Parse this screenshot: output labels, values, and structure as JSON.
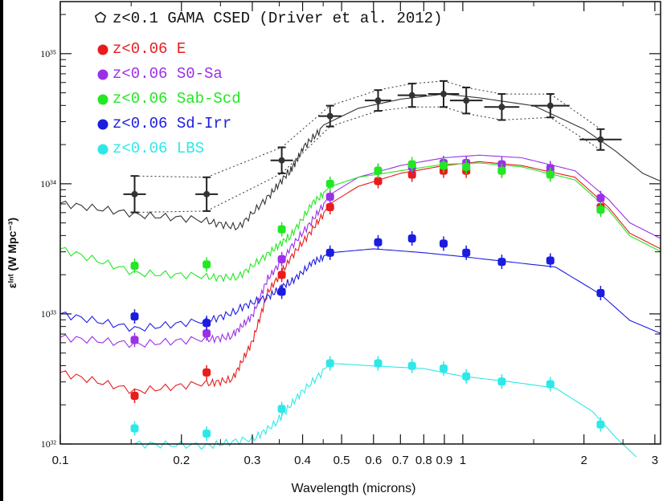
{
  "chart_data": {
    "type": "scatter",
    "title": "",
    "xlabel": "Wavelength (microns)",
    "ylabel": "εᴵⁿᵗ (W Mpc⁻³)",
    "xscale": "log",
    "yscale": "log",
    "xlim": [
      0.1,
      3.1
    ],
    "ylim_log10": [
      32,
      35.4
    ],
    "x_ticks": [
      {
        "v": 0.1,
        "label": "0.1"
      },
      {
        "v": 0.2,
        "label": "0.2"
      },
      {
        "v": 0.3,
        "label": "0.3"
      },
      {
        "v": 0.4,
        "label": "0.4"
      },
      {
        "v": 0.5,
        "label": "0.5"
      },
      {
        "v": 0.6,
        "label": "0.6"
      },
      {
        "v": 0.7,
        "label": "0.7"
      },
      {
        "v": 0.8,
        "label": "0.8"
      },
      {
        "v": 0.9,
        "label": "0.9"
      },
      {
        "v": 1,
        "label": "1"
      },
      {
        "v": 2,
        "label": "2"
      },
      {
        "v": 3,
        "label": "3"
      }
    ],
    "y_ticks": [
      {
        "v": 32,
        "label": "10³²"
      },
      {
        "v": 33,
        "label": "10³³"
      },
      {
        "v": 34,
        "label": "10³⁴"
      },
      {
        "v": 35,
        "label": "10³⁵"
      }
    ],
    "legend_position": "top-left",
    "series": [
      {
        "name": "z<0.1 GAMA CSED (Driver et al. 2012)",
        "color": "#111111",
        "marker": "open-pentagon",
        "x": [
          0.153,
          0.231,
          0.355,
          0.468,
          0.616,
          0.748,
          0.896,
          1.02,
          1.25,
          1.65,
          2.2
        ],
        "log_y": [
          33.92,
          33.92,
          34.18,
          34.52,
          34.64,
          34.68,
          34.69,
          34.64,
          34.59,
          34.6,
          34.34
        ],
        "log_err": [
          0.14,
          0.13,
          0.1,
          0.08,
          0.08,
          0.09,
          0.1,
          0.1,
          0.1,
          0.09,
          0.08
        ]
      },
      {
        "name": "z<0.06 E",
        "color": "#e81c1c",
        "marker": "filled-circle",
        "x": [
          0.153,
          0.231,
          0.355,
          0.468,
          0.616,
          0.748,
          0.896,
          1.02,
          1.25,
          1.65,
          2.2
        ],
        "log_y": [
          32.37,
          32.55,
          33.3,
          33.82,
          34.02,
          34.07,
          34.1,
          34.1,
          34.1,
          34.08,
          33.82
        ]
      },
      {
        "name": "z<0.06 S0-Sa",
        "color": "#9b30e8",
        "marker": "filled-circle",
        "x": [
          0.153,
          0.231,
          0.355,
          0.468,
          0.616,
          0.748,
          0.896,
          1.02,
          1.25,
          1.65,
          2.2
        ],
        "log_y": [
          32.8,
          32.85,
          33.42,
          33.9,
          34.1,
          34.13,
          34.16,
          34.16,
          34.15,
          34.12,
          33.89
        ]
      },
      {
        "name": "z<0.06 Sab-Scd",
        "color": "#22e822",
        "marker": "filled-circle",
        "x": [
          0.153,
          0.231,
          0.355,
          0.468,
          0.616,
          0.748,
          0.896,
          1.02,
          1.25,
          1.65,
          2.2
        ],
        "log_y": [
          33.37,
          33.38,
          33.65,
          34.0,
          34.1,
          34.15,
          34.14,
          34.13,
          34.1,
          34.07,
          33.8
        ]
      },
      {
        "name": "z<0.06 Sd-Irr",
        "color": "#1c1ce0",
        "marker": "filled-circle",
        "x": [
          0.153,
          0.231,
          0.355,
          0.468,
          0.616,
          0.748,
          0.896,
          1.02,
          1.25,
          1.65,
          2.2
        ],
        "log_y": [
          32.98,
          32.93,
          33.17,
          33.47,
          33.55,
          33.58,
          33.54,
          33.47,
          33.4,
          33.41,
          33.16
        ]
      },
      {
        "name": "z<0.06 LBS",
        "color": "#2ee8e8",
        "marker": "filled-circle",
        "x": [
          0.153,
          0.231,
          0.355,
          0.468,
          0.616,
          0.748,
          0.896,
          1.02,
          1.25,
          1.65,
          2.2
        ],
        "log_y": [
          32.12,
          32.08,
          32.27,
          32.62,
          32.62,
          32.6,
          32.58,
          32.52,
          32.48,
          32.46,
          32.15
        ]
      }
    ],
    "envelope": {
      "name": "GAMA CSED uncertainty envelope",
      "style": "dotted",
      "x": [
        0.153,
        0.231,
        0.355,
        0.468,
        0.616,
        0.748,
        0.896,
        1.02,
        1.25,
        1.65,
        2.2
      ],
      "upper_log_y": [
        34.06,
        34.05,
        34.28,
        34.6,
        34.72,
        34.77,
        34.79,
        34.74,
        34.69,
        34.69,
        34.42
      ],
      "lower_log_y": [
        33.78,
        33.79,
        34.08,
        34.44,
        34.56,
        34.59,
        34.59,
        34.54,
        34.49,
        34.51,
        34.26
      ]
    },
    "model_curves": [
      {
        "name": "GAMA",
        "color": "#333333",
        "pts": [
          [
            0.1,
            33.85
          ],
          [
            0.153,
            33.78
          ],
          [
            0.231,
            33.73
          ],
          [
            0.28,
            33.68
          ],
          [
            0.33,
            33.92
          ],
          [
            0.37,
            34.1
          ],
          [
            0.4,
            34.28
          ],
          [
            0.45,
            34.45
          ],
          [
            0.55,
            34.58
          ],
          [
            0.7,
            34.65
          ],
          [
            0.9,
            34.69
          ],
          [
            1.1,
            34.66
          ],
          [
            1.5,
            34.6
          ],
          [
            2.0,
            34.42
          ],
          [
            2.4,
            34.25
          ],
          [
            2.8,
            34.08
          ],
          [
            3.1,
            34.02
          ]
        ]
      },
      {
        "name": "E",
        "color": "#e81c1c",
        "pts": [
          [
            0.1,
            32.55
          ],
          [
            0.153,
            32.42
          ],
          [
            0.231,
            32.48
          ],
          [
            0.27,
            32.52
          ],
          [
            0.3,
            32.8
          ],
          [
            0.33,
            33.2
          ],
          [
            0.37,
            33.42
          ],
          [
            0.42,
            33.65
          ],
          [
            0.47,
            33.85
          ],
          [
            0.55,
            33.98
          ],
          [
            0.7,
            34.08
          ],
          [
            0.9,
            34.14
          ],
          [
            1.1,
            34.17
          ],
          [
            1.4,
            34.14
          ],
          [
            1.9,
            34.05
          ],
          [
            2.3,
            33.82
          ],
          [
            2.6,
            33.62
          ],
          [
            3.1,
            33.5
          ]
        ]
      },
      {
        "name": "S0-Sa",
        "color": "#9b30e8",
        "pts": [
          [
            0.1,
            32.82
          ],
          [
            0.153,
            32.78
          ],
          [
            0.231,
            32.82
          ],
          [
            0.27,
            32.85
          ],
          [
            0.3,
            33.0
          ],
          [
            0.33,
            33.3
          ],
          [
            0.37,
            33.5
          ],
          [
            0.42,
            33.72
          ],
          [
            0.47,
            33.92
          ],
          [
            0.55,
            34.05
          ],
          [
            0.7,
            34.14
          ],
          [
            0.9,
            34.2
          ],
          [
            1.1,
            34.22
          ],
          [
            1.4,
            34.2
          ],
          [
            1.9,
            34.1
          ],
          [
            2.3,
            33.88
          ],
          [
            2.6,
            33.7
          ],
          [
            3.1,
            33.58
          ]
        ]
      },
      {
        "name": "Sab-Scd",
        "color": "#22e822",
        "pts": [
          [
            0.1,
            33.5
          ],
          [
            0.153,
            33.33
          ],
          [
            0.231,
            33.3
          ],
          [
            0.28,
            33.3
          ],
          [
            0.33,
            33.48
          ],
          [
            0.37,
            33.6
          ],
          [
            0.42,
            33.85
          ],
          [
            0.47,
            33.98
          ],
          [
            0.55,
            34.05
          ],
          [
            0.7,
            34.1
          ],
          [
            0.9,
            34.15
          ],
          [
            1.1,
            34.16
          ],
          [
            1.4,
            34.13
          ],
          [
            1.9,
            34.03
          ],
          [
            2.3,
            33.8
          ],
          [
            2.6,
            33.6
          ],
          [
            3.1,
            33.48
          ]
        ]
      },
      {
        "name": "Sd-Irr",
        "color": "#1c1ce0",
        "pts": [
          [
            0.1,
            33.0
          ],
          [
            0.153,
            32.9
          ],
          [
            0.231,
            32.96
          ],
          [
            0.28,
            33.05
          ],
          [
            0.33,
            33.15
          ],
          [
            0.37,
            33.25
          ],
          [
            0.42,
            33.4
          ],
          [
            0.47,
            33.47
          ],
          [
            0.6,
            33.5
          ],
          [
            0.8,
            33.47
          ],
          [
            1.0,
            33.44
          ],
          [
            1.3,
            33.4
          ],
          [
            1.7,
            33.36
          ],
          [
            2.2,
            33.15
          ],
          [
            2.6,
            32.95
          ],
          [
            3.1,
            32.85
          ]
        ]
      },
      {
        "name": "LBS",
        "color": "#2ee8e8",
        "pts": [
          [
            0.153,
            32.0
          ],
          [
            0.231,
            32.0
          ],
          [
            0.3,
            32.05
          ],
          [
            0.35,
            32.2
          ],
          [
            0.4,
            32.42
          ],
          [
            0.47,
            32.62
          ],
          [
            0.6,
            32.6
          ],
          [
            0.8,
            32.58
          ],
          [
            1.0,
            32.52
          ],
          [
            1.3,
            32.48
          ],
          [
            1.7,
            32.43
          ],
          [
            2.1,
            32.25
          ],
          [
            2.4,
            32.05
          ],
          [
            2.7,
            31.9
          ]
        ]
      }
    ]
  }
}
